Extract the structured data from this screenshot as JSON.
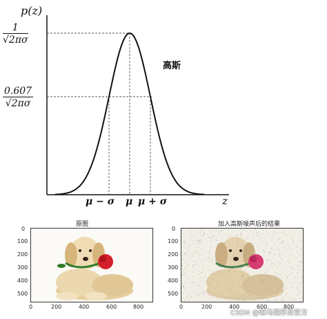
{
  "gaussian": {
    "y_label": "p(z)",
    "x_label": "z",
    "curve_label": "高斯",
    "peak_label": {
      "numerator": "1",
      "denominator": "√2πσ"
    },
    "mid_label": {
      "numerator": "0.607",
      "denominator": "√2πσ"
    },
    "x_ticks": [
      "μ − σ",
      "μ",
      "μ + σ"
    ]
  },
  "panels": [
    {
      "title": "原图",
      "y_ticks": [
        "0",
        "100",
        "200",
        "300",
        "400",
        "500"
      ],
      "x_ticks": [
        "0",
        "200",
        "400",
        "600",
        "800"
      ],
      "noisy": false
    },
    {
      "title": "加入高斯噪声后的结果",
      "y_ticks": [
        "0",
        "100",
        "200",
        "300",
        "400",
        "500"
      ],
      "x_ticks": [
        "0",
        "200",
        "400",
        "600",
        "800"
      ],
      "noisy": true
    }
  ],
  "watermark": "CSDN @嘛马程序员官方",
  "colors": {
    "curve": "#111111",
    "rose": "#d4202a",
    "leaf": "#2f7d2a",
    "dog": "#e8d3a6"
  }
}
